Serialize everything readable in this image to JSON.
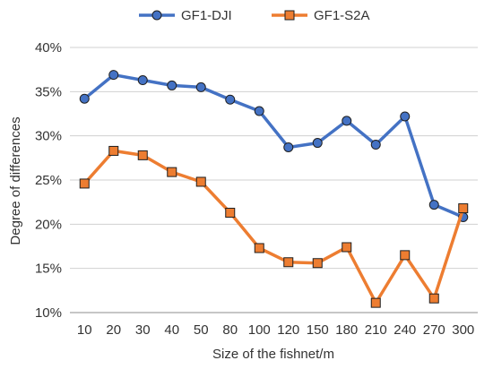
{
  "chart_data": {
    "type": "line",
    "title": "",
    "xlabel": "Size of the fishnet/m",
    "ylabel": "Degree of differences",
    "categories": [
      "10",
      "20",
      "30",
      "40",
      "50",
      "80",
      "100",
      "120",
      "150",
      "180",
      "210",
      "240",
      "270",
      "300"
    ],
    "ylim": [
      0.1,
      0.4
    ],
    "yticks": [
      "10%",
      "15%",
      "20%",
      "25%",
      "30%",
      "35%",
      "40%"
    ],
    "grid": "horizontal",
    "legend_position": "top",
    "series": [
      {
        "name": "GF1-DJI",
        "color": "#4472C4",
        "marker": "circle",
        "values": [
          0.342,
          0.369,
          0.363,
          0.357,
          0.355,
          0.341,
          0.328,
          0.287,
          0.292,
          0.317,
          0.29,
          0.322,
          0.222,
          0.208
        ]
      },
      {
        "name": "GF1-S2A",
        "color": "#ED7D31",
        "marker": "square",
        "values": [
          0.246,
          0.283,
          0.278,
          0.259,
          0.248,
          0.213,
          0.173,
          0.157,
          0.156,
          0.174,
          0.111,
          0.165,
          0.116,
          0.218
        ]
      }
    ]
  }
}
